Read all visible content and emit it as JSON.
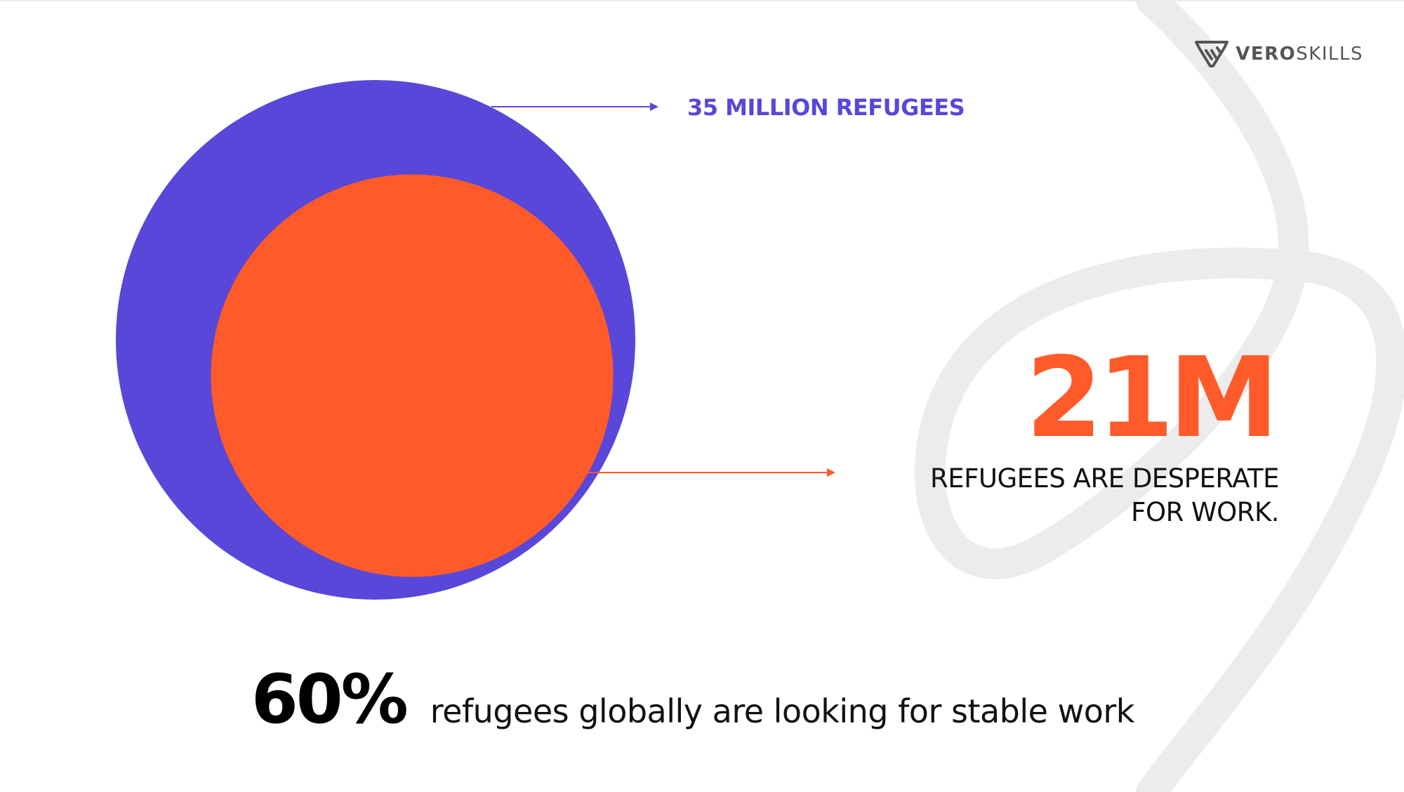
{
  "brand": {
    "logo_bold": "VERO",
    "logo_light": "SKILLS",
    "logo_icon": "veroskills-shield-icon"
  },
  "chart_data": {
    "type": "nested-circles",
    "values": [
      {
        "label": "35 MILLION REFUGEES",
        "value": 35,
        "color": "#5847d9"
      },
      {
        "label": "21M",
        "value": 21,
        "color": "#ff5a2a"
      }
    ]
  },
  "labels": {
    "total": "35 MILLION REFUGEES",
    "highlight_number": "21M",
    "highlight_caption_line1": "REFUGEES ARE DESPERATE",
    "highlight_caption_line2": "FOR WORK."
  },
  "footer_stat": {
    "value": "60%",
    "text": "refugees globally are looking for stable work"
  },
  "colors": {
    "purple": "#5847d9",
    "orange": "#ff5a2a",
    "decor": "#ececec"
  }
}
